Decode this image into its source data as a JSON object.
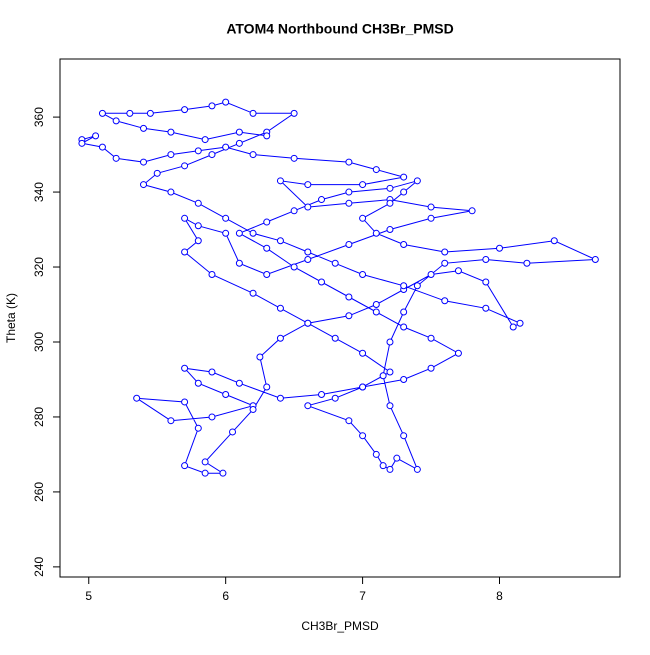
{
  "chart_data": {
    "type": "line",
    "markers": "circle",
    "title": "ATOM4 Northbound CH3Br_PMSD",
    "xlabel": "CH3Br_PMSD",
    "ylabel": "Theta (K)",
    "color": "#0000ff",
    "x": [
      4.95,
      5.05,
      4.95,
      5.1,
      5.2,
      5.4,
      5.6,
      5.8,
      6.0,
      6.2,
      6.5,
      6.9,
      7.1,
      7.3,
      7.0,
      6.6,
      6.4,
      6.6,
      6.9,
      7.2,
      7.5,
      7.8,
      7.5,
      7.2,
      6.9,
      6.6,
      6.3,
      6.1,
      6.0,
      5.8,
      5.7,
      5.8,
      5.7,
      5.9,
      6.2,
      6.4,
      6.6,
      6.8,
      7.0,
      7.2,
      7.0,
      6.8,
      6.6,
      6.9,
      7.0,
      7.1,
      7.15,
      7.2,
      7.25,
      7.4,
      7.3,
      7.2,
      7.15,
      7.2,
      7.3,
      7.4,
      7.6,
      7.9,
      8.2,
      8.7,
      8.4,
      8.0,
      7.6,
      7.3,
      7.1,
      7.0,
      7.2,
      7.3,
      7.4,
      7.2,
      6.9,
      6.7,
      6.5,
      6.3,
      6.1,
      6.3,
      6.5,
      6.7,
      6.9,
      7.1,
      7.3,
      7.5,
      7.7,
      7.5,
      7.3,
      7.0,
      6.7,
      6.4,
      6.1,
      5.9,
      5.7,
      5.8,
      6.0,
      6.2,
      5.9,
      5.6,
      5.35,
      5.7,
      5.8,
      5.7,
      5.85,
      5.98,
      5.85,
      6.05,
      6.2,
      6.3,
      6.25,
      6.4,
      6.6,
      6.9,
      7.1,
      7.3,
      7.5,
      7.7,
      7.9,
      8.1,
      8.15,
      7.9,
      7.6,
      7.3,
      7.0,
      6.8,
      6.6,
      6.4,
      6.2,
      6.0,
      5.8,
      5.6,
      5.4,
      5.5,
      5.7,
      5.9,
      6.1,
      6.3,
      6.5,
      6.2,
      6.0,
      5.9,
      5.7,
      5.45,
      5.3,
      5.1,
      5.2,
      5.4,
      5.6,
      5.85,
      6.1,
      6.3
    ],
    "values": [
      354,
      355,
      353,
      352,
      349,
      348,
      350,
      351,
      352,
      350,
      349,
      348,
      346,
      344,
      342,
      342,
      343,
      336,
      337,
      338,
      336,
      335,
      333,
      330,
      326,
      322,
      318,
      321,
      329,
      331,
      333,
      327,
      324,
      318,
      313,
      309,
      305,
      301,
      297,
      292,
      288,
      285,
      283,
      279,
      275,
      270,
      267,
      266,
      269,
      266,
      275,
      283,
      291,
      300,
      308,
      315,
      321,
      322,
      321,
      322,
      327,
      325,
      324,
      326,
      329,
      333,
      337,
      340,
      343,
      341,
      340,
      338,
      335,
      332,
      329,
      325,
      320,
      316,
      312,
      308,
      304,
      301,
      297,
      293,
      290,
      288,
      286,
      285,
      289,
      292,
      293,
      289,
      286,
      283,
      280,
      279,
      285,
      284,
      277,
      267,
      265,
      265,
      268,
      276,
      282,
      288,
      296,
      301,
      305,
      307,
      310,
      314,
      318,
      319,
      316,
      304,
      305,
      309,
      311,
      315,
      318,
      321,
      324,
      327,
      329,
      333,
      337,
      340,
      342,
      345,
      347,
      350,
      353,
      356,
      361,
      361,
      364,
      363,
      362,
      361,
      361,
      361,
      359,
      357,
      356,
      354,
      356,
      355
    ],
    "xlim": [
      4.79,
      8.88
    ],
    "ylim": [
      237.3,
      375.5
    ],
    "xticks": [
      5,
      6,
      7,
      8
    ],
    "yticks": [
      240,
      260,
      280,
      300,
      320,
      340,
      360
    ]
  }
}
